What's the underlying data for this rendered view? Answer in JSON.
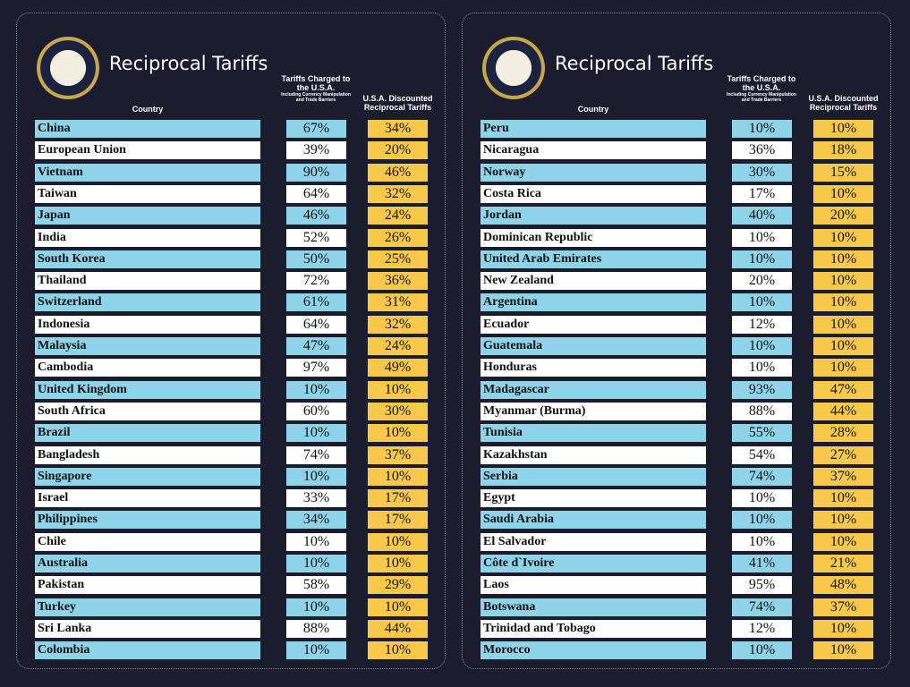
{
  "panels": [
    {
      "title": "Reciprocal Tariffs",
      "headers": {
        "country": "Country",
        "charged": "Tariffs Charged to the U.S.A.",
        "charged_note": "Including Currency Manipulation and Trade Barriers",
        "discounted": "U.S.A. Discounted Reciprocal Tariffs"
      },
      "rows": [
        [
          "China",
          "67%",
          "34%"
        ],
        [
          "European Union",
          "39%",
          "20%"
        ],
        [
          "Vietnam",
          "90%",
          "46%"
        ],
        [
          "Taiwan",
          "64%",
          "32%"
        ],
        [
          "Japan",
          "46%",
          "24%"
        ],
        [
          "India",
          "52%",
          "26%"
        ],
        [
          "South Korea",
          "50%",
          "25%"
        ],
        [
          "Thailand",
          "72%",
          "36%"
        ],
        [
          "Switzerland",
          "61%",
          "31%"
        ],
        [
          "Indonesia",
          "64%",
          "32%"
        ],
        [
          "Malaysia",
          "47%",
          "24%"
        ],
        [
          "Cambodia",
          "97%",
          "49%"
        ],
        [
          "United Kingdom",
          "10%",
          "10%"
        ],
        [
          "South Africa",
          "60%",
          "30%"
        ],
        [
          "Brazil",
          "10%",
          "10%"
        ],
        [
          "Bangladesh",
          "74%",
          "37%"
        ],
        [
          "Singapore",
          "10%",
          "10%"
        ],
        [
          "Israel",
          "33%",
          "17%"
        ],
        [
          "Philippines",
          "34%",
          "17%"
        ],
        [
          "Chile",
          "10%",
          "10%"
        ],
        [
          "Australia",
          "10%",
          "10%"
        ],
        [
          "Pakistan",
          "58%",
          "29%"
        ],
        [
          "Turkey",
          "10%",
          "10%"
        ],
        [
          "Sri Lanka",
          "88%",
          "44%"
        ],
        [
          "Colombia",
          "10%",
          "10%"
        ]
      ]
    },
    {
      "title": "Reciprocal Tariffs",
      "headers": {
        "country": "Country",
        "charged": "Tariffs Charged to the U.S.A.",
        "charged_note": "Including Currency Manipulation and Trade Barriers",
        "discounted": "U.S.A. Discounted Reciprocal Tariffs"
      },
      "rows": [
        [
          "Peru",
          "10%",
          "10%"
        ],
        [
          "Nicaragua",
          "36%",
          "18%"
        ],
        [
          "Norway",
          "30%",
          "15%"
        ],
        [
          "Costa Rica",
          "17%",
          "10%"
        ],
        [
          "Jordan",
          "40%",
          "20%"
        ],
        [
          "Dominican Republic",
          "10%",
          "10%"
        ],
        [
          "United Arab Emirates",
          "10%",
          "10%"
        ],
        [
          "New Zealand",
          "20%",
          "10%"
        ],
        [
          "Argentina",
          "10%",
          "10%"
        ],
        [
          "Ecuador",
          "12%",
          "10%"
        ],
        [
          "Guatemala",
          "10%",
          "10%"
        ],
        [
          "Honduras",
          "10%",
          "10%"
        ],
        [
          "Madagascar",
          "93%",
          "47%"
        ],
        [
          "Myanmar (Burma)",
          "88%",
          "44%"
        ],
        [
          "Tunisia",
          "55%",
          "28%"
        ],
        [
          "Kazakhstan",
          "54%",
          "27%"
        ],
        [
          "Serbia",
          "74%",
          "37%"
        ],
        [
          "Egypt",
          "10%",
          "10%"
        ],
        [
          "Saudi Arabia",
          "10%",
          "10%"
        ],
        [
          "El Salvador",
          "10%",
          "10%"
        ],
        [
          "Côte d`Ivoire",
          "41%",
          "21%"
        ],
        [
          "Laos",
          "95%",
          "48%"
        ],
        [
          "Botswana",
          "74%",
          "37%"
        ],
        [
          "Trinidad and Tobago",
          "12%",
          "10%"
        ],
        [
          "Morocco",
          "10%",
          "10%"
        ]
      ]
    }
  ]
}
